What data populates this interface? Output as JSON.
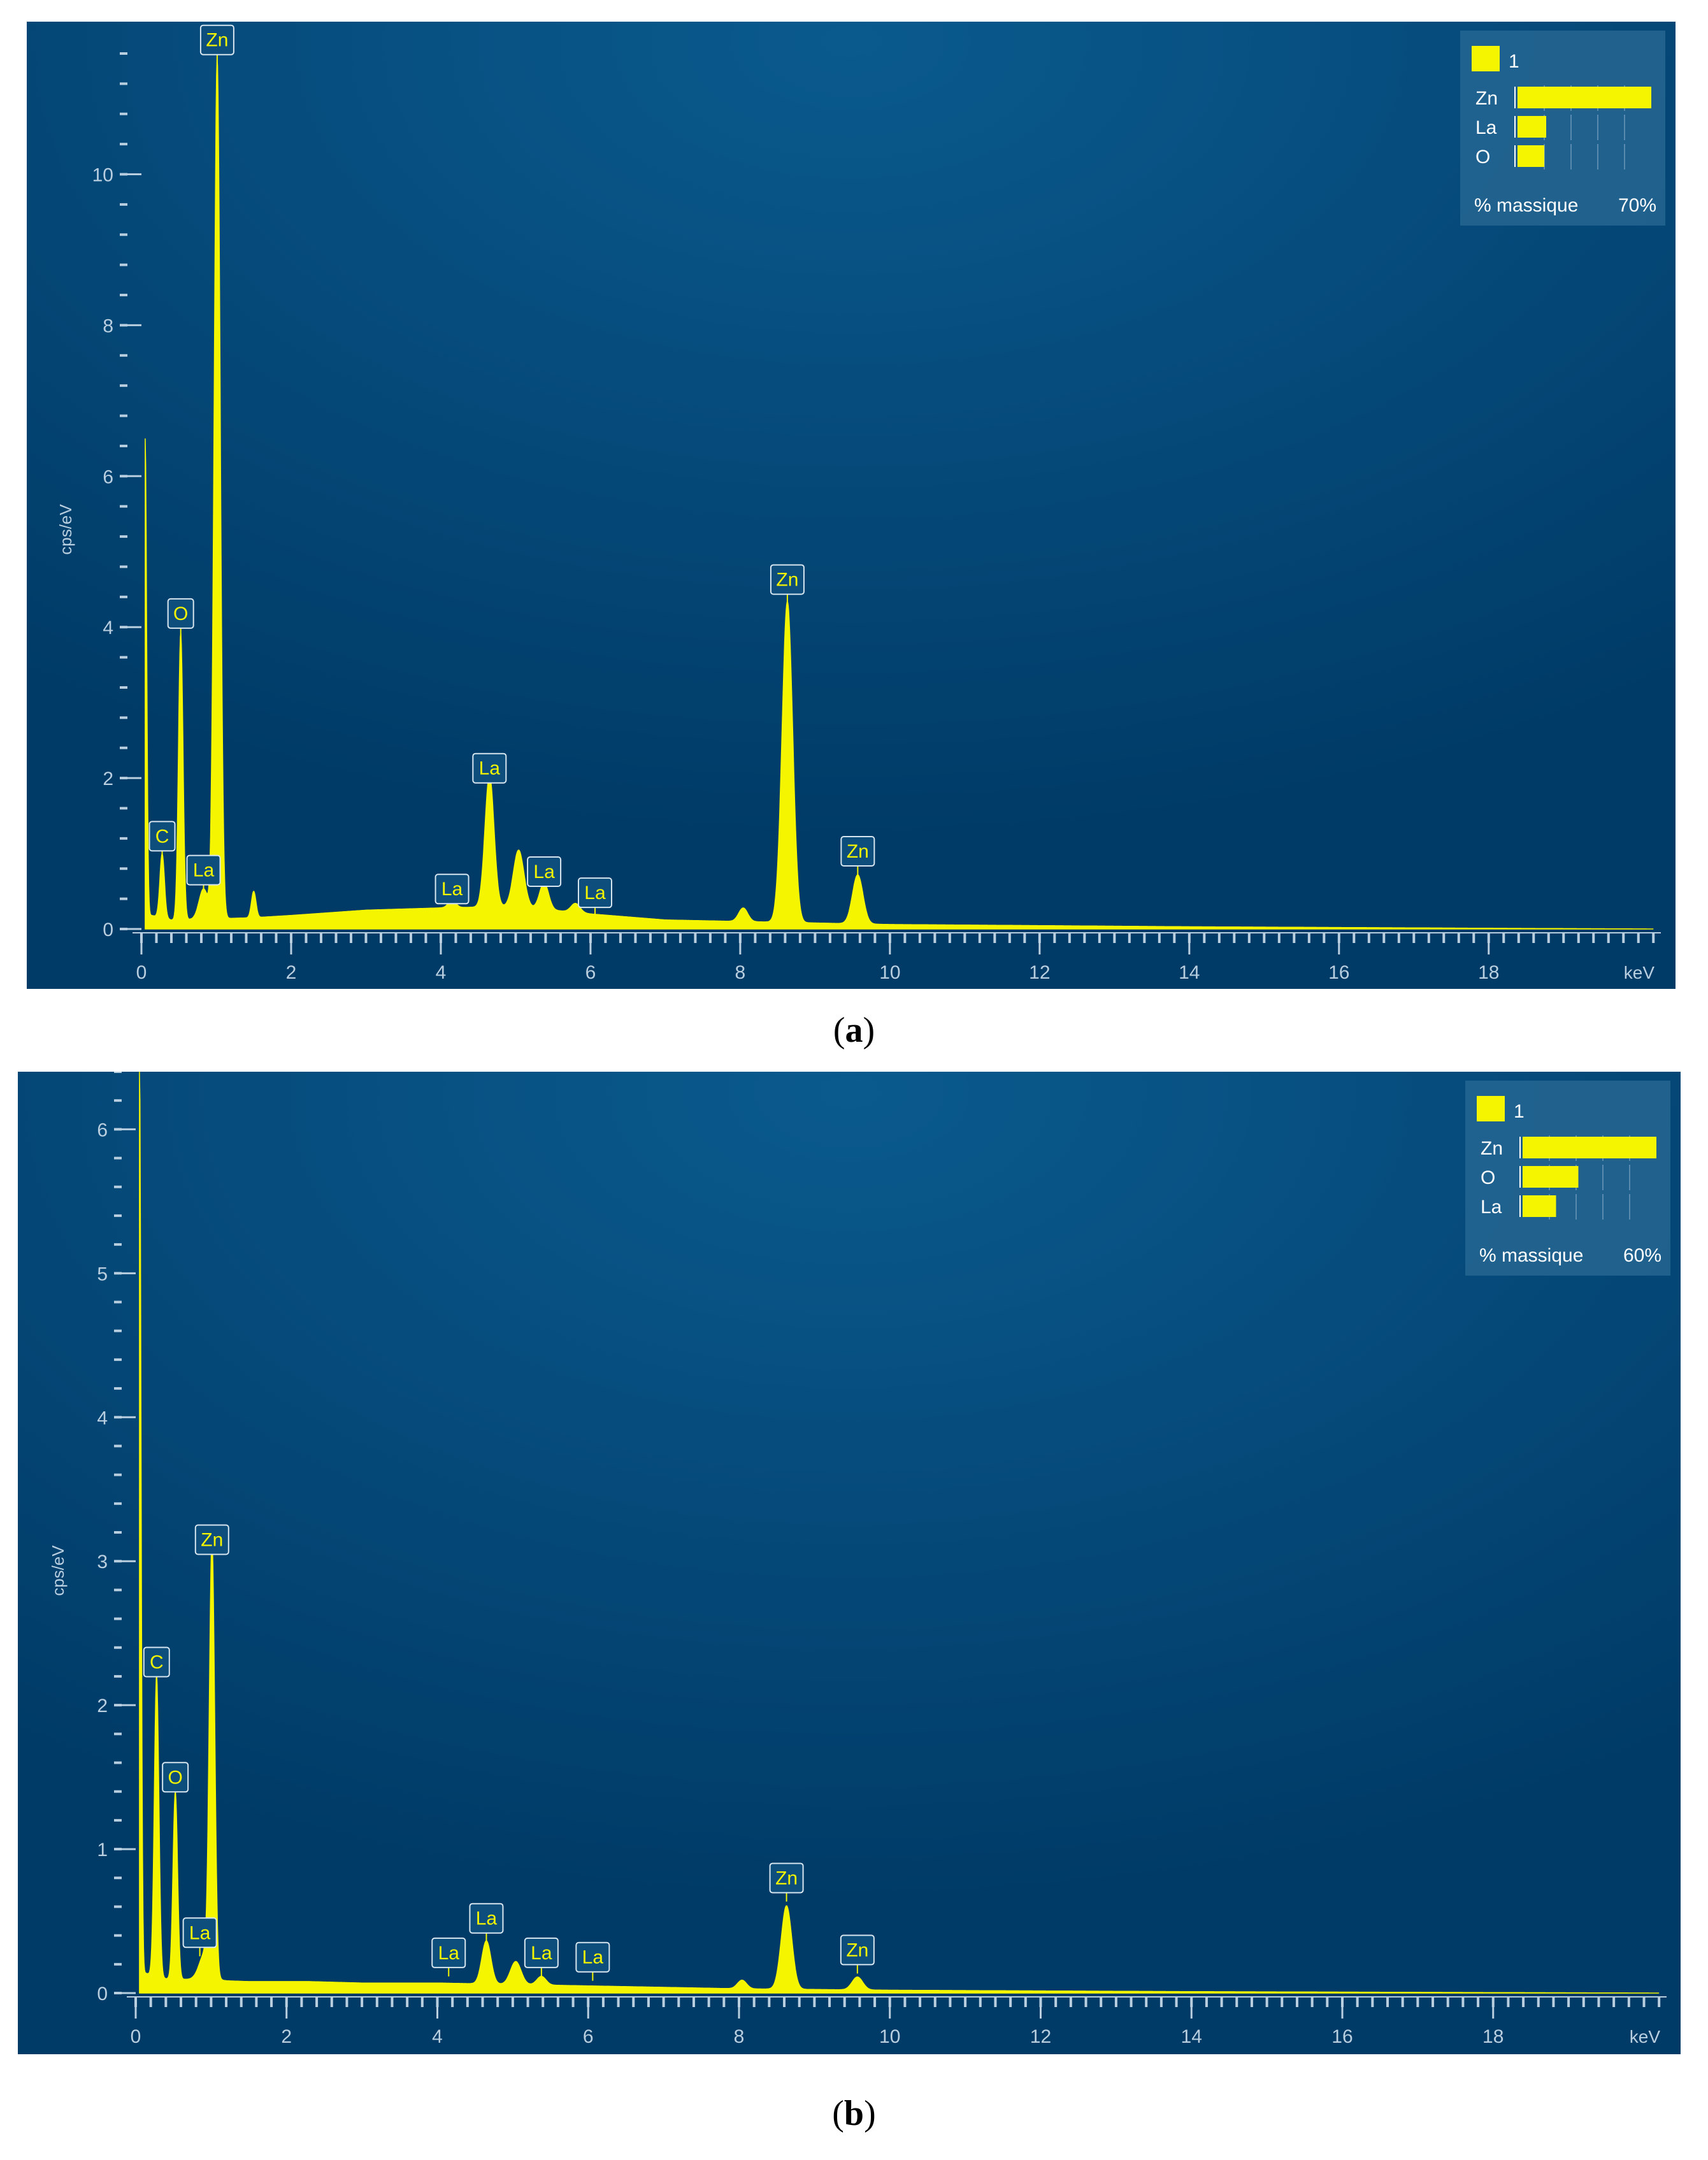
{
  "colors": {
    "background_dark": "#003a66",
    "background_light": "#0a5a8e",
    "spectrum": "#f5f500",
    "axis_text": "#b9cfe0",
    "label_box": "#0d4e7c"
  },
  "panels": [
    {
      "caption_letter": "a",
      "chart_data": {
        "type": "line",
        "title": "",
        "xlabel": "keV",
        "ylabel": "cps/eV",
        "xlim": [
          0,
          20.3
        ],
        "ylim": [
          0,
          11.6
        ],
        "xticks": [
          0,
          2,
          4,
          6,
          8,
          10,
          12,
          14,
          16,
          18
        ],
        "yticks": [
          0,
          2,
          4,
          6,
          8,
          10
        ],
        "grid": false,
        "legend_placement": "top-right",
        "legend": {
          "series_label": "1",
          "rows": [
            {
              "element": "Zn",
              "value": 0.7
            },
            {
              "element": "La",
              "value": 0.15
            },
            {
              "element": "O",
              "value": 0.14
            }
          ],
          "footer_label": "% massique",
          "footer_value": "70%"
        },
        "baseline": [
          [
            0.05,
            0.2
          ],
          [
            0.4,
            0.12
          ],
          [
            1.5,
            0.15
          ],
          [
            2,
            0.18
          ],
          [
            3,
            0.25
          ],
          [
            4,
            0.28
          ],
          [
            5,
            0.3
          ],
          [
            6,
            0.2
          ],
          [
            7,
            0.12
          ],
          [
            8,
            0.1
          ],
          [
            10,
            0.06
          ],
          [
            14,
            0.03
          ],
          [
            18,
            0.01
          ],
          [
            20.2,
            0.0
          ]
        ],
        "peaks": [
          {
            "x": 0.05,
            "y": 6.3,
            "w": 0.02
          },
          {
            "x": 0.277,
            "y": 0.85,
            "w": 0.03
          },
          {
            "x": 0.525,
            "y": 3.8,
            "w": 0.03
          },
          {
            "x": 0.83,
            "y": 0.4,
            "w": 0.06
          },
          {
            "x": 1.012,
            "y": 11.4,
            "w": 0.04
          },
          {
            "x": 1.5,
            "y": 0.35,
            "w": 0.03
          },
          {
            "x": 4.15,
            "y": 0.1,
            "w": 0.05
          },
          {
            "x": 4.65,
            "y": 1.75,
            "w": 0.06
          },
          {
            "x": 5.04,
            "y": 0.75,
            "w": 0.07
          },
          {
            "x": 5.38,
            "y": 0.35,
            "w": 0.06
          },
          {
            "x": 5.8,
            "y": 0.12,
            "w": 0.06
          },
          {
            "x": 8.04,
            "y": 0.18,
            "w": 0.06
          },
          {
            "x": 8.63,
            "y": 4.25,
            "w": 0.07
          },
          {
            "x": 9.57,
            "y": 0.65,
            "w": 0.07
          }
        ],
        "annotations": [
          {
            "text": "Zn",
            "x": 1.012,
            "y": 11.4
          },
          {
            "text": "O",
            "x": 0.525,
            "y": 3.8
          },
          {
            "text": "C",
            "x": 0.277,
            "y": 0.85
          },
          {
            "text": "La",
            "x": 0.83,
            "y": 0.4
          },
          {
            "text": "La",
            "x": 4.15,
            "y": 0.15
          },
          {
            "text": "La",
            "x": 4.65,
            "y": 1.75
          },
          {
            "text": "La",
            "x": 5.38,
            "y": 0.38
          },
          {
            "text": "La",
            "x": 6.06,
            "y": 0.1
          },
          {
            "text": "Zn",
            "x": 8.63,
            "y": 4.25
          },
          {
            "text": "Zn",
            "x": 9.57,
            "y": 0.65
          }
        ]
      }
    },
    {
      "caption_letter": "b",
      "chart_data": {
        "type": "line",
        "title": "",
        "xlabel": "keV",
        "ylabel": "cps/eV",
        "xlim": [
          0,
          20.3
        ],
        "ylim": [
          0,
          6.4
        ],
        "xticks": [
          0,
          2,
          4,
          6,
          8,
          10,
          12,
          14,
          16,
          18
        ],
        "yticks": [
          0,
          1,
          2,
          3,
          4,
          5,
          6
        ],
        "grid": false,
        "legend_placement": "top-right",
        "legend": {
          "series_label": "1",
          "rows": [
            {
              "element": "Zn",
              "value": 0.6
            },
            {
              "element": "O",
              "value": 0.25
            },
            {
              "element": "La",
              "value": 0.15
            }
          ],
          "footer_label": "% massique",
          "footer_value": "60%"
        },
        "baseline": [
          [
            0.05,
            0.15
          ],
          [
            0.4,
            0.1
          ],
          [
            1.5,
            0.08
          ],
          [
            2.3,
            0.08
          ],
          [
            3,
            0.07
          ],
          [
            4,
            0.07
          ],
          [
            5,
            0.06
          ],
          [
            6,
            0.05
          ],
          [
            7,
            0.04
          ],
          [
            8,
            0.03
          ],
          [
            10,
            0.02
          ],
          [
            14,
            0.01
          ],
          [
            20.2,
            0.0
          ]
        ],
        "peaks": [
          {
            "x": 0.05,
            "y": 6.4,
            "w": 0.02
          },
          {
            "x": 0.277,
            "y": 2.1,
            "w": 0.03
          },
          {
            "x": 0.525,
            "y": 1.3,
            "w": 0.03
          },
          {
            "x": 0.93,
            "y": 0.2,
            "w": 0.08
          },
          {
            "x": 1.012,
            "y": 2.95,
            "w": 0.035
          },
          {
            "x": 4.65,
            "y": 0.3,
            "w": 0.06
          },
          {
            "x": 5.04,
            "y": 0.16,
            "w": 0.07
          },
          {
            "x": 5.38,
            "y": 0.06,
            "w": 0.06
          },
          {
            "x": 8.04,
            "y": 0.06,
            "w": 0.06
          },
          {
            "x": 8.63,
            "y": 0.58,
            "w": 0.07
          },
          {
            "x": 9.57,
            "y": 0.09,
            "w": 0.07
          }
        ],
        "annotations": [
          {
            "text": "Zn",
            "x": 1.012,
            "y": 2.95
          },
          {
            "text": "C",
            "x": 0.277,
            "y": 2.1
          },
          {
            "text": "O",
            "x": 0.525,
            "y": 1.3
          },
          {
            "text": "La",
            "x": 0.85,
            "y": 0.22
          },
          {
            "text": "La",
            "x": 4.15,
            "y": 0.08
          },
          {
            "text": "La",
            "x": 4.65,
            "y": 0.32
          },
          {
            "text": "La",
            "x": 5.38,
            "y": 0.08
          },
          {
            "text": "La",
            "x": 6.06,
            "y": 0.05
          },
          {
            "text": "Zn",
            "x": 8.63,
            "y": 0.6
          },
          {
            "text": "Zn",
            "x": 9.57,
            "y": 0.1
          }
        ]
      }
    }
  ]
}
